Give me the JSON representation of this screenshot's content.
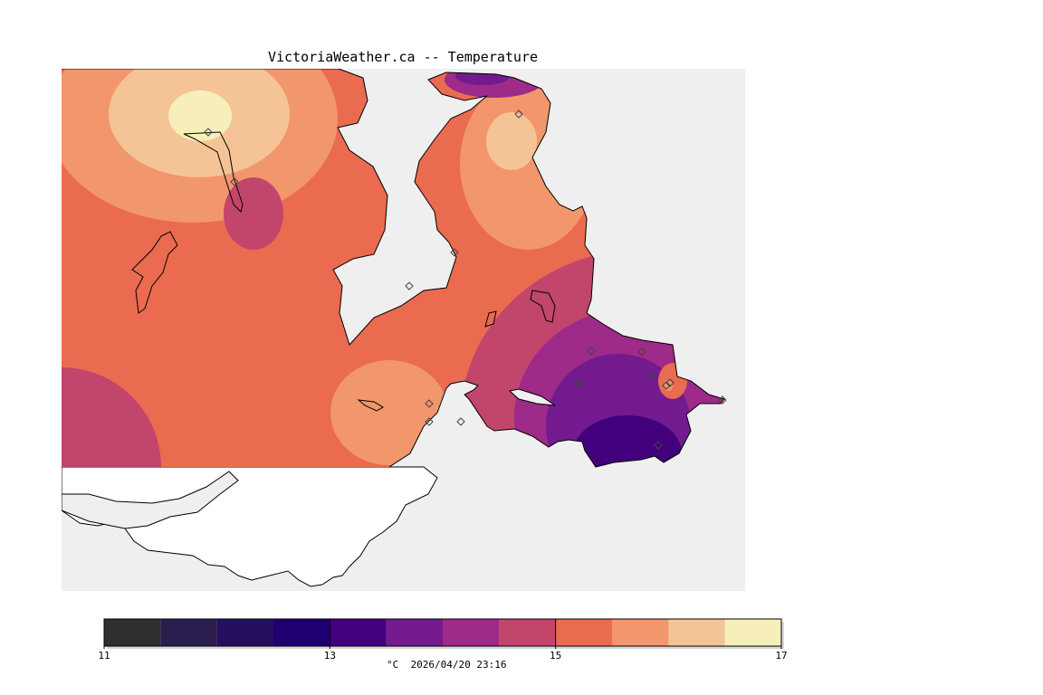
{
  "title": "VictoriaWeather.ca -- Temperature",
  "legend": {
    "unit": "°C",
    "timestamp": "2026/04/20 23:16",
    "min": 11,
    "max": 17,
    "step": 0.5,
    "tick_labels": [
      "11",
      "13",
      "15",
      "17"
    ],
    "colors": [
      "#2f2f2f",
      "#2c1d4f",
      "#230f5e",
      "#1f0070",
      "#42007c",
      "#721a8e",
      "#9e2a8a",
      "#c2456b",
      "#ea6b50",
      "#f2966c",
      "#f4c497",
      "#f6efb9"
    ]
  },
  "map": {
    "background_color": "#efefef",
    "land_color": "#ffffff",
    "coast_color": "#000000",
    "station_marker": "diamond",
    "station_count": 17
  }
}
